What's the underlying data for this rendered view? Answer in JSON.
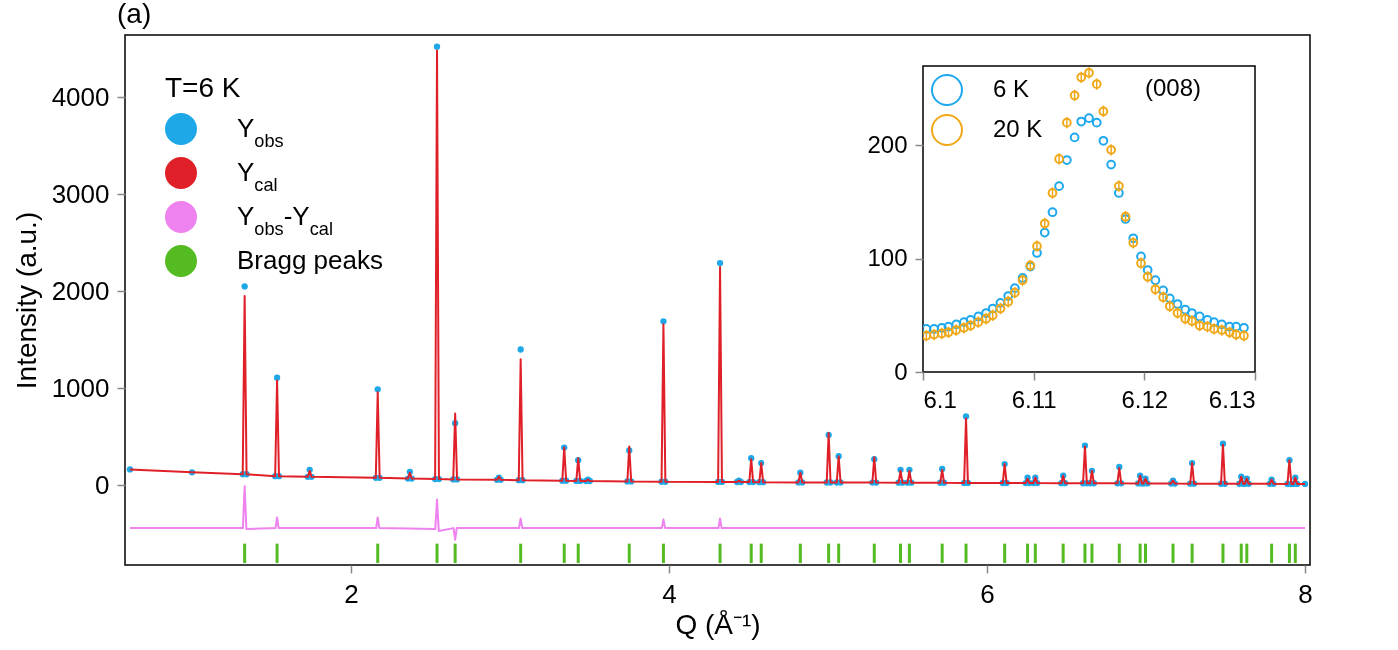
{
  "chart_data": [
    {
      "type": "scatter",
      "xlabel": "Q (Å⁻¹)",
      "ylabel": "Intensity (a.u.)",
      "legend_title": "T=6 K",
      "annotations": [
        "(a)"
      ],
      "legend": "top left",
      "grid": false,
      "xlim": [
        0.61,
        8.0
      ],
      "ylim": [
        -820,
        4640
      ],
      "xticks": [
        2,
        4,
        6,
        8
      ],
      "yticks": [
        0,
        1000,
        2000,
        3000,
        4000
      ],
      "x": [
        0.61,
        1.0,
        1.319,
        1.331,
        1.343,
        1.523,
        1.535,
        1.547,
        1.728,
        1.74,
        1.752,
        2.156,
        2.168,
        2.18,
        2.358,
        2.37,
        2.382,
        2.529,
        2.541,
        2.553,
        2.643,
        2.655,
        2.667,
        2.918,
        2.93,
        2.942,
        3.055,
        3.067,
        3.079,
        3.329,
        3.341,
        3.353,
        3.417,
        3.429,
        3.441,
        3.478,
        3.49,
        3.502,
        3.738,
        3.75,
        3.762,
        3.953,
        3.965,
        3.977,
        4.309,
        4.321,
        4.333,
        4.428,
        4.44,
        4.452,
        4.505,
        4.517,
        4.529,
        4.568,
        4.58,
        4.592,
        4.814,
        4.826,
        4.838,
        4.992,
        5.004,
        5.016,
        5.055,
        5.067,
        5.079,
        5.279,
        5.291,
        5.303,
        5.444,
        5.456,
        5.468,
        5.5,
        5.512,
        5.524,
        5.706,
        5.718,
        5.73,
        5.856,
        5.868,
        5.88,
        6.099,
        6.111,
        6.123,
        6.243,
        6.255,
        6.267,
        6.292,
        6.304,
        6.316,
        6.467,
        6.479,
        6.491,
        6.604,
        6.616,
        6.628,
        6.648,
        6.66,
        6.672,
        6.82,
        6.832,
        6.844,
        6.951,
        6.963,
        6.975,
        6.985,
        6.997,
        7.009,
        7.158,
        7.17,
        7.182,
        7.278,
        7.29,
        7.302,
        7.472,
        7.484,
        7.496,
        7.587,
        7.599,
        7.611,
        7.622,
        7.634,
        7.646,
        7.778,
        7.79,
        7.802,
        7.89,
        7.902,
        7.914,
        7.927,
        7.939,
        7.951,
        8.0
      ],
      "series": [
        {
          "name": "Y$_{obs}$",
          "type": "scatter",
          "marker": "circle",
          "color": "#1fa8e8",
          "values": [
            165,
            135,
            115,
            2050,
            115,
            95,
            1110,
            95,
            88,
            160,
            88,
            78,
            990,
            78,
            70,
            140,
            70,
            65,
            4520,
            65,
            62,
            640,
            62,
            57,
            80,
            57,
            54,
            1400,
            54,
            48,
            390,
            48,
            46,
            260,
            46,
            45,
            60,
            45,
            41,
            360,
            41,
            38,
            1690,
            38,
            36,
            2290,
            36,
            35,
            50,
            35,
            34,
            280,
            34,
            33,
            230,
            33,
            31,
            130,
            31,
            30,
            520,
            30,
            30,
            300,
            30,
            29,
            270,
            29,
            28,
            160,
            28,
            28,
            160,
            28,
            27,
            170,
            27,
            26,
            710,
            26,
            25,
            220,
            25,
            24,
            80,
            24,
            24,
            80,
            24,
            23,
            100,
            23,
            22,
            410,
            22,
            22,
            150,
            22,
            21,
            190,
            21,
            20,
            100,
            20,
            20,
            70,
            20,
            19,
            50,
            19,
            18,
            230,
            18,
            17,
            430,
            17,
            17,
            90,
            17,
            16,
            70,
            16,
            16,
            60,
            16,
            15,
            260,
            15,
            15,
            80,
            15,
            15
          ]
        },
        {
          "name": "Y$_{cal}$",
          "type": "line",
          "color": "#e02028",
          "values": [
            165,
            135,
            115,
            1950,
            115,
            95,
            1080,
            95,
            88,
            150,
            88,
            78,
            960,
            78,
            70,
            130,
            70,
            65,
            4480,
            65,
            62,
            740,
            62,
            57,
            90,
            57,
            54,
            1300,
            54,
            48,
            390,
            48,
            46,
            280,
            46,
            45,
            60,
            45,
            41,
            400,
            41,
            38,
            1660,
            38,
            36,
            2250,
            36,
            35,
            50,
            35,
            34,
            270,
            34,
            33,
            230,
            33,
            31,
            130,
            31,
            30,
            540,
            30,
            30,
            300,
            30,
            29,
            290,
            29,
            28,
            150,
            28,
            28,
            150,
            28,
            27,
            160,
            27,
            26,
            690,
            26,
            25,
            220,
            25,
            24,
            70,
            24,
            24,
            80,
            24,
            23,
            100,
            23,
            22,
            400,
            22,
            22,
            150,
            22,
            21,
            180,
            21,
            20,
            100,
            20,
            20,
            70,
            20,
            19,
            50,
            19,
            18,
            230,
            18,
            17,
            420,
            17,
            17,
            90,
            17,
            16,
            70,
            16,
            16,
            60,
            16,
            15,
            260,
            15,
            15,
            80,
            15,
            15
          ]
        },
        {
          "name": "Y$_{obs}$-Y$_{cal}$",
          "type": "line",
          "color": "#ee82ee",
          "x": [
            0.61,
            1.32,
            1.331,
            1.342,
            1.525,
            1.535,
            1.545,
            2.158,
            2.168,
            2.178,
            2.53,
            2.541,
            2.552,
            2.645,
            2.655,
            2.665,
            3.057,
            3.067,
            3.077,
            3.955,
            3.965,
            3.975,
            4.311,
            4.321,
            4.331,
            8.0
          ],
          "values": [
            -440,
            -440,
            -10,
            -450,
            -440,
            -330,
            -440,
            -440,
            -330,
            -440,
            -450,
            -145,
            -470,
            -440,
            -560,
            -440,
            -440,
            -340,
            -440,
            -440,
            -350,
            -440,
            -440,
            -340,
            -440,
            -440
          ]
        },
        {
          "name": "Bragg peaks",
          "type": "bar",
          "color": "#55bb22",
          "base": [
            -800,
            -800,
            -800,
            -800,
            -800,
            -800,
            -800,
            -800,
            -800,
            -800,
            -800,
            -800,
            -800,
            -800,
            -800,
            -800,
            -800,
            -800,
            -800,
            -800,
            -800,
            -800,
            -800,
            -800,
            -800,
            -800,
            -800,
            -800,
            -800,
            -800,
            -800,
            -800,
            -800,
            -800,
            -800,
            -800,
            -800,
            -800
          ],
          "x": [
            1.331,
            1.535,
            2.168,
            2.541,
            2.655,
            3.067,
            3.341,
            3.429,
            3.75,
            3.965,
            4.321,
            4.517,
            4.58,
            4.826,
            5.004,
            5.067,
            5.291,
            5.456,
            5.512,
            5.718,
            5.868,
            6.111,
            6.255,
            6.304,
            6.479,
            6.616,
            6.66,
            6.832,
            6.963,
            6.997,
            7.17,
            7.29,
            7.484,
            7.599,
            7.634,
            7.79,
            7.902,
            7.939
          ],
          "values": [
            200,
            200,
            200,
            200,
            200,
            200,
            200,
            200,
            200,
            200,
            200,
            200,
            200,
            200,
            200,
            200,
            200,
            200,
            200,
            200,
            200,
            200,
            200,
            200,
            200,
            200,
            200,
            200,
            200,
            200,
            200,
            200,
            200,
            200,
            200,
            200,
            200,
            200
          ]
        }
      ]
    },
    {
      "type": "scatter",
      "annotations": [
        "(008)"
      ],
      "legend": "top left",
      "grid": false,
      "marker": "circle",
      "xlim": [
        6.1,
        6.13
      ],
      "ylim": [
        0,
        270
      ],
      "xticks": [
        6.1,
        6.11,
        6.12,
        6.13
      ],
      "yticks": [
        0,
        100,
        200
      ],
      "x": [
        6.1003,
        6.101,
        6.1017,
        6.1023,
        6.103,
        6.1037,
        6.1043,
        6.105,
        6.1057,
        6.1063,
        6.107,
        6.1077,
        6.1083,
        6.109,
        6.1097,
        6.1103,
        6.111,
        6.1117,
        6.1123,
        6.113,
        6.1137,
        6.1143,
        6.115,
        6.1157,
        6.1163,
        6.117,
        6.1177,
        6.1183,
        6.119,
        6.1197,
        6.1203,
        6.121,
        6.1217,
        6.1223,
        6.123,
        6.1237,
        6.1243,
        6.125,
        6.1257,
        6.1263,
        6.127,
        6.1277,
        6.1283,
        6.129
      ],
      "series": [
        {
          "name": "6 K",
          "color": "#1ea8ee",
          "values": [
            38,
            38,
            39,
            40,
            42,
            44,
            46,
            49,
            52,
            56,
            61,
            67,
            74,
            83,
            93,
            105,
            123,
            141,
            164,
            187,
            207,
            221,
            224,
            220,
            204,
            183,
            158,
            135,
            118,
            102,
            90,
            81,
            72,
            65,
            60,
            55,
            52,
            49,
            46,
            44,
            42,
            40,
            40,
            39
          ]
        },
        {
          "name": "20 K",
          "color": "#f0a818",
          "values": [
            32,
            33,
            34,
            35,
            37,
            39,
            41,
            44,
            47,
            50,
            56,
            62,
            70,
            81,
            94,
            111,
            131,
            158,
            188,
            220,
            244,
            260,
            264,
            254,
            230,
            196,
            164,
            137,
            114,
            96,
            84,
            73,
            66,
            58,
            52,
            47,
            45,
            41,
            40,
            38,
            37,
            35,
            33,
            32
          ],
          "errors": [
            5,
            5,
            5,
            5,
            5,
            5,
            5,
            5,
            5,
            5,
            5,
            5,
            5,
            5,
            5,
            5,
            5,
            5,
            5,
            5,
            5,
            5,
            5,
            5,
            5,
            5,
            5,
            5,
            5,
            5,
            5,
            5,
            5,
            5,
            5,
            5,
            5,
            5,
            5,
            5,
            5,
            5,
            5,
            5
          ]
        }
      ]
    }
  ]
}
